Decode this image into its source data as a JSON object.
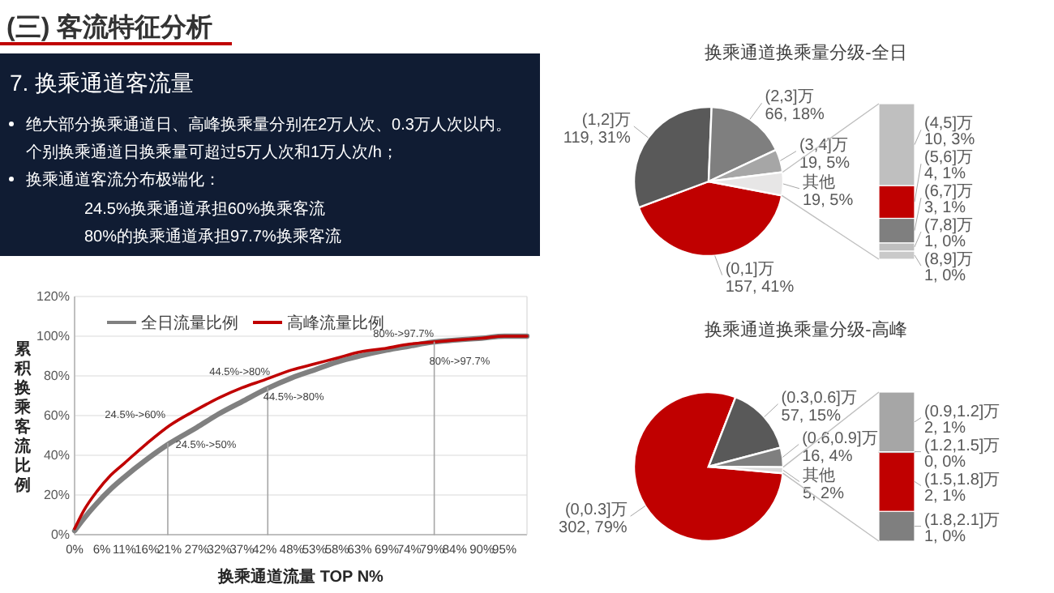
{
  "chart_data": [
    {
      "type": "other",
      "title": "(三) 客流特征分析",
      "subtitle": "7. 换乘通道客流量",
      "annotations": [
        "绝大部分换乘通道日、高峰换乘量分别在2万人次、0.3万人次以内。",
        "个别换乘通道日换乘量可超过5万人次和1万人次/h；",
        "换乘通道客流分布极端化：",
        "24.5%换乘通道承担60%换乘客流",
        "80%的换乘通道承担97.7%换乘客流"
      ]
    },
    {
      "type": "line",
      "xlabel": "换乘通道流量 TOP N%",
      "ylabel": "累积换乘客流比例",
      "xlim": [
        0,
        100
      ],
      "ylim": [
        0,
        120
      ],
      "xticks": [
        {
          "value": 0,
          "label": "0%"
        },
        {
          "value": 6,
          "label": "6%"
        },
        {
          "value": 11,
          "label": "11%"
        },
        {
          "value": 16,
          "label": "16%"
        },
        {
          "value": 21,
          "label": "21%"
        },
        {
          "value": 27,
          "label": "27%"
        },
        {
          "value": 32,
          "label": "32%"
        },
        {
          "value": 37,
          "label": "37%"
        },
        {
          "value": 42,
          "label": "42%"
        },
        {
          "value": 48,
          "label": "48%"
        },
        {
          "value": 53,
          "label": "53%"
        },
        {
          "value": 58,
          "label": "58%"
        },
        {
          "value": 63,
          "label": "63%"
        },
        {
          "value": 69,
          "label": "69%"
        },
        {
          "value": 74,
          "label": "74%"
        },
        {
          "value": 79,
          "label": "79%"
        },
        {
          "value": 84,
          "label": "84%"
        },
        {
          "value": 90,
          "label": "90%"
        },
        {
          "value": 95,
          "label": "95%"
        }
      ],
      "yticks": [
        {
          "value": 0,
          "label": "0%"
        },
        {
          "value": 20,
          "label": "20%"
        },
        {
          "value": 40,
          "label": "40%"
        },
        {
          "value": 60,
          "label": "60%"
        },
        {
          "value": 80,
          "label": "80%"
        },
        {
          "value": 100,
          "label": "100%"
        },
        {
          "value": 120,
          "label": "120%"
        }
      ],
      "grid": "y",
      "legend": "top left",
      "series": [
        {
          "name": "全日流量比例",
          "color": "#808080",
          "x": [
            0,
            2,
            5,
            8,
            11,
            16,
            21,
            27,
            32,
            37,
            42,
            48,
            53,
            58,
            63,
            69,
            74,
            79,
            84,
            90,
            95,
            100
          ],
          "values": [
            2,
            8,
            16,
            23,
            29,
            38,
            46,
            54,
            61,
            67,
            73,
            79,
            83,
            87,
            90,
            93,
            95,
            97,
            98,
            99,
            100,
            100
          ]
        },
        {
          "name": "高峰流量比例",
          "color": "#c00000",
          "x": [
            0,
            2,
            5,
            8,
            11,
            16,
            21,
            27,
            32,
            37,
            42,
            48,
            53,
            58,
            63,
            69,
            74,
            79,
            84,
            90,
            95,
            100
          ],
          "values": [
            3,
            12,
            22,
            30,
            36,
            46,
            55,
            63,
            69,
            74,
            78,
            83,
            86,
            89,
            92,
            94,
            96,
            97,
            98,
            99,
            100,
            100
          ]
        },
        {
          "color": "#a6a6a6",
          "x": [
            20.6,
            20.6
          ],
          "values": [
            0,
            46
          ]
        },
        {
          "color": "#a6a6a6",
          "x": [
            42.7,
            42.7
          ],
          "values": [
            0,
            74
          ]
        },
        {
          "color": "#a6a6a6",
          "x": [
            79.5,
            79.5
          ],
          "values": [
            0,
            97
          ]
        }
      ],
      "annotations": [
        "24.5%->60%",
        "24.5%->50%",
        "44.5%->80%",
        "44.5%->80%",
        "80%->97.7%",
        "80%->97.7%"
      ]
    },
    {
      "type": "pie",
      "title": "换乘通道换乘量分级-全日",
      "categories": [
        "(0,1]万",
        "(1,2]万",
        "(2,3]万",
        "(3,4]万",
        "其他"
      ],
      "values": [
        157,
        119,
        66,
        19,
        19
      ],
      "colors": [
        "#c00000",
        "#595959",
        "#7f7f7f",
        "#a6a6a6",
        "#e7e6e6"
      ],
      "value_labels": [
        "157, 41%",
        "119, 31%",
        "66, 18%",
        "19, 5%",
        "19, 5%"
      ]
    },
    {
      "type": "bar",
      "stacked": true,
      "categories": [
        null
      ],
      "series": [
        {
          "name": "(8,9]万",
          "color": "#c9c9c9",
          "values": [
            1
          ],
          "value_labels": [
            "1, 0%"
          ]
        },
        {
          "name": "(7,8]万",
          "color": "#bfbfbf",
          "values": [
            1
          ],
          "value_labels": [
            "1, 0%"
          ]
        },
        {
          "name": "(6,7]万",
          "color": "#7f7f7f",
          "values": [
            3
          ],
          "value_labels": [
            "3, 1%"
          ]
        },
        {
          "name": "(5,6]万",
          "color": "#c00000",
          "values": [
            4
          ],
          "value_labels": [
            "4, 1%"
          ]
        },
        {
          "name": "(4,5]万",
          "color": "#bfbfbf",
          "values": [
            10
          ],
          "value_labels": [
            "10, 3%"
          ]
        }
      ]
    },
    {
      "type": "pie",
      "title": "换乘通道换乘量分级-高峰",
      "categories": [
        "(0,0.3]万",
        "(0.3,0.6]万",
        "(0.6,0.9]万",
        "其他"
      ],
      "values": [
        302,
        57,
        16,
        5
      ],
      "colors": [
        "#c00000",
        "#595959",
        "#7f7f7f",
        "#d9d9d9"
      ],
      "value_labels": [
        "302, 79%",
        "57, 15%",
        "16, 4%",
        "5, 2%"
      ]
    },
    {
      "type": "bar",
      "stacked": true,
      "categories": [
        null
      ],
      "series": [
        {
          "name": "(1.8,2.1]万",
          "color": "#7f7f7f",
          "values": [
            1
          ],
          "value_labels": [
            "1, 0%"
          ]
        },
        {
          "name": "(1.5,1.8]万",
          "color": "#c00000",
          "values": [
            2
          ],
          "value_labels": [
            "2, 1%"
          ]
        },
        {
          "name": "(1.2,1.5]万",
          "color": "#bfbfbf",
          "values": [
            0
          ],
          "value_labels": [
            "0, 0%"
          ]
        },
        {
          "name": "(0.9,1.2]万",
          "color": "#a6a6a6",
          "values": [
            2
          ],
          "value_labels": [
            "2, 1%"
          ]
        }
      ]
    }
  ]
}
